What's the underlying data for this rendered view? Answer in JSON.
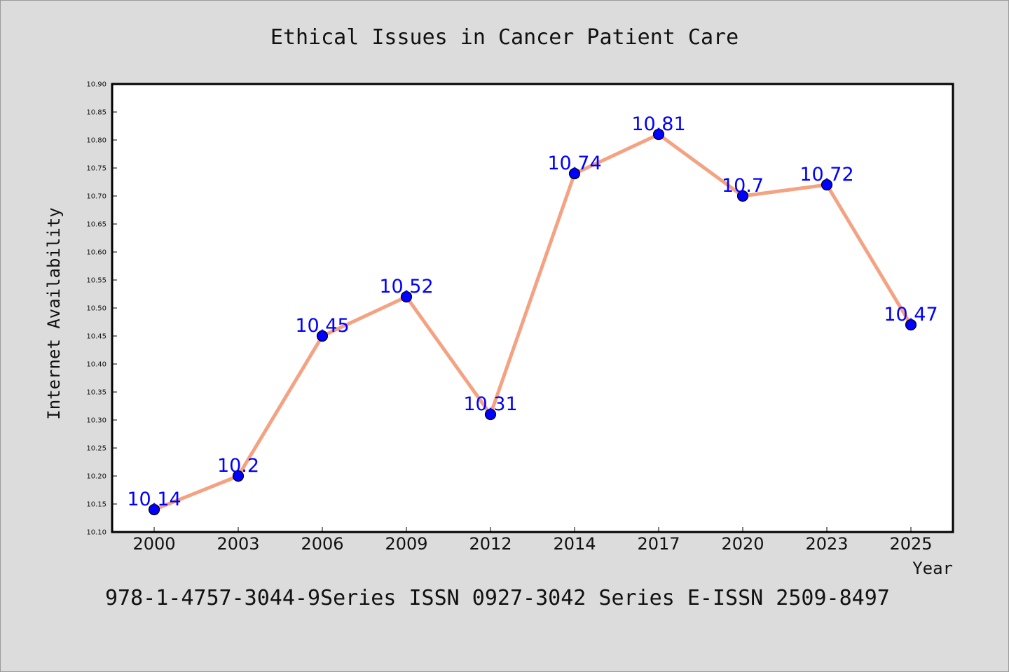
{
  "chart_data": {
    "type": "line",
    "title": "Ethical Issues in Cancer Patient Care",
    "xlabel": "Year",
    "ylabel": "Internet Availability",
    "categories": [
      "2000",
      "2003",
      "2006",
      "2009",
      "2012",
      "2014",
      "2017",
      "2020",
      "2023",
      "2025"
    ],
    "values": [
      10.14,
      10.2,
      10.45,
      10.52,
      10.31,
      10.74,
      10.81,
      10.7,
      10.72,
      10.47
    ],
    "data_labels": [
      "10.14",
      "10.2",
      "10.45",
      "10.52",
      "10.31",
      "10.74",
      "10.81",
      "10.7",
      "10.72",
      "10.47"
    ],
    "ylim": [
      10.1,
      10.9
    ],
    "yticks": [
      "10.10",
      "10.15",
      "10.20",
      "10.25",
      "10.30",
      "10.35",
      "10.40",
      "10.45",
      "10.50",
      "10.55",
      "10.60",
      "10.65",
      "10.70",
      "10.75",
      "10.80",
      "10.85",
      "10.90"
    ],
    "grid": false,
    "line_color": "#f4a282",
    "marker_color": "#0000ff",
    "label_color": "#0000ff"
  },
  "footer": "978-1-4757-3044-9Series ISSN 0927-3042 Series E-ISSN 2509-8497"
}
